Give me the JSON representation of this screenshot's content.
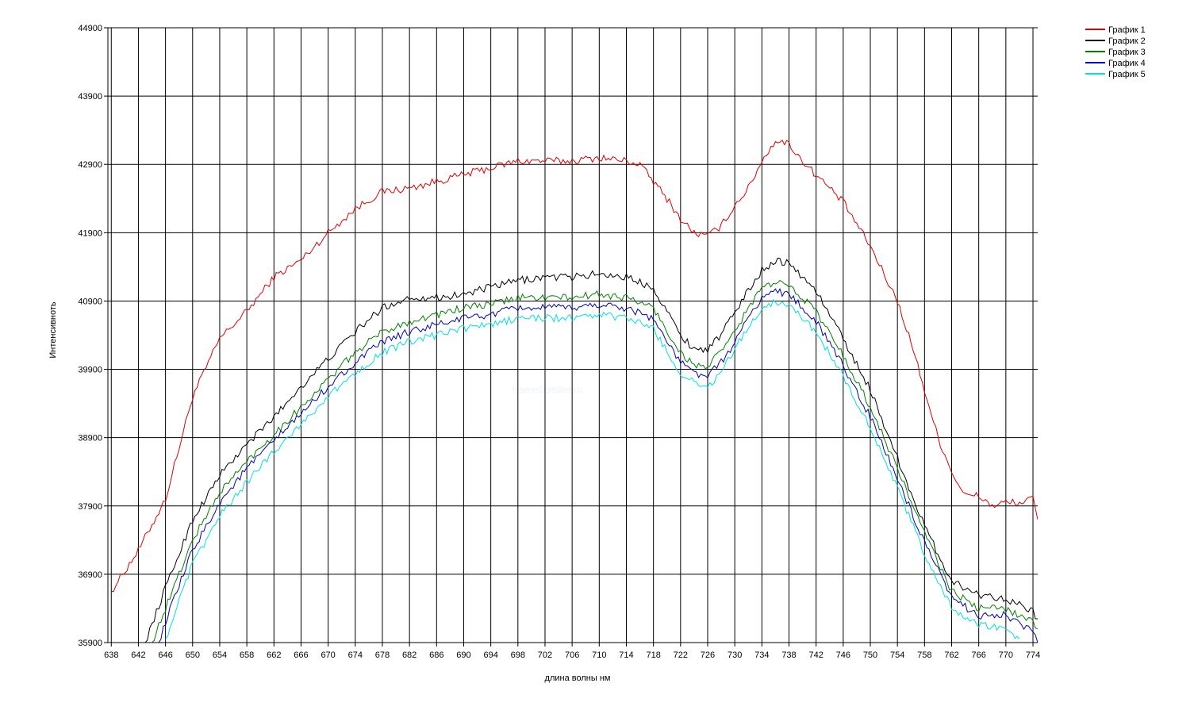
{
  "watermark": "HomeDistiller.ru",
  "chart_data": {
    "type": "line",
    "title": "",
    "xlabel": "длина волны нм",
    "ylabel": "Интенсивноть",
    "xlim": [
      637.5,
      774.7
    ],
    "ylim": [
      35900,
      44900
    ],
    "x_ticks": [
      638,
      642,
      646,
      650,
      654,
      658,
      662,
      666,
      670,
      674,
      678,
      682,
      686,
      690,
      694,
      698,
      702,
      706,
      710,
      714,
      718,
      722,
      726,
      730,
      734,
      738,
      742,
      746,
      750,
      754,
      758,
      762,
      766,
      770,
      774
    ],
    "y_ticks": [
      35900,
      36900,
      37900,
      38900,
      39900,
      40900,
      41900,
      42900,
      43900,
      44900
    ],
    "grid": true,
    "legend_position": "top-right",
    "series": [
      {
        "name": "График 1",
        "color": "#e00000",
        "x": [
          638,
          642,
          646,
          650,
          654,
          658,
          662,
          666,
          670,
          674,
          678,
          682,
          686,
          690,
          694,
          698,
          702,
          706,
          710,
          714,
          716,
          718,
          720,
          722,
          724,
          726,
          728,
          730,
          732,
          734,
          736,
          738,
          740,
          742,
          746,
          750,
          754,
          756,
          758,
          760,
          762,
          764,
          766,
          768,
          770,
          772,
          774,
          774.7
        ],
        "y": [
          36650,
          37250,
          38000,
          39500,
          40350,
          40750,
          41250,
          41500,
          41900,
          42250,
          42500,
          42550,
          42650,
          42750,
          42850,
          42950,
          42950,
          42950,
          43000,
          42950,
          42900,
          42650,
          42400,
          42100,
          41900,
          41850,
          42000,
          42300,
          42550,
          42950,
          43250,
          43200,
          42950,
          42750,
          42350,
          41700,
          40900,
          40300,
          39600,
          38900,
          38400,
          38050,
          38050,
          37900,
          37950,
          37950,
          38000,
          37700
        ]
      },
      {
        "name": "График 2",
        "color": "#000000",
        "x": [
          643,
          646,
          650,
          654,
          658,
          662,
          666,
          670,
          674,
          678,
          682,
          686,
          690,
          694,
          698,
          702,
          706,
          710,
          714,
          718,
          720,
          722,
          724,
          726,
          728,
          730,
          732,
          734,
          736,
          738,
          740,
          742,
          746,
          750,
          754,
          758,
          762,
          766,
          770,
          774,
          774.7
        ],
        "y": [
          35900,
          36700,
          37700,
          38350,
          38800,
          39200,
          39650,
          40050,
          40450,
          40800,
          40950,
          40950,
          41000,
          41100,
          41200,
          41250,
          41250,
          41300,
          41250,
          41100,
          40750,
          40400,
          40200,
          40200,
          40400,
          40750,
          41050,
          41350,
          41500,
          41450,
          41250,
          41050,
          40350,
          39600,
          38600,
          37600,
          36800,
          36600,
          36550,
          36350,
          36250
        ]
      },
      {
        "name": "График 3",
        "color": "#008000",
        "x": [
          644,
          646,
          650,
          654,
          658,
          662,
          666,
          670,
          674,
          678,
          682,
          686,
          690,
          694,
          698,
          702,
          706,
          710,
          714,
          718,
          720,
          722,
          724,
          726,
          728,
          730,
          732,
          734,
          736,
          738,
          740,
          742,
          746,
          750,
          754,
          758,
          762,
          766,
          770,
          774,
          774.7
        ],
        "y": [
          35900,
          36400,
          37400,
          38100,
          38550,
          38950,
          39350,
          39750,
          40150,
          40450,
          40600,
          40700,
          40800,
          40850,
          40950,
          40950,
          40950,
          41000,
          40950,
          40800,
          40450,
          40150,
          39950,
          39950,
          40150,
          40450,
          40800,
          41100,
          41150,
          41150,
          40950,
          40750,
          40100,
          39350,
          38450,
          37500,
          36650,
          36400,
          36400,
          36200,
          36100
        ]
      },
      {
        "name": "График 4",
        "color": "#0000c0",
        "x": [
          645,
          646,
          650,
          654,
          658,
          662,
          666,
          670,
          674,
          678,
          682,
          686,
          690,
          694,
          698,
          702,
          706,
          710,
          714,
          718,
          720,
          722,
          724,
          726,
          728,
          730,
          732,
          734,
          736,
          738,
          740,
          742,
          746,
          750,
          754,
          758,
          762,
          766,
          770,
          774,
          774.7
        ],
        "y": [
          35900,
          36200,
          37250,
          37950,
          38450,
          38850,
          39250,
          39650,
          40000,
          40300,
          40450,
          40550,
          40650,
          40700,
          40800,
          40800,
          40800,
          40850,
          40800,
          40650,
          40300,
          40000,
          39850,
          39800,
          40000,
          40300,
          40650,
          40950,
          41050,
          41000,
          40800,
          40600,
          39950,
          39200,
          38300,
          37350,
          36550,
          36300,
          36300,
          36050,
          35900
        ]
      },
      {
        "name": "График 5",
        "color": "#00e0e0",
        "x": [
          646,
          650,
          654,
          658,
          662,
          666,
          670,
          674,
          678,
          682,
          686,
          690,
          694,
          698,
          702,
          706,
          710,
          714,
          718,
          720,
          722,
          724,
          726,
          728,
          730,
          732,
          734,
          736,
          738,
          740,
          742,
          746,
          750,
          754,
          758,
          762,
          766,
          770,
          772
        ],
        "y": [
          35950,
          37050,
          37750,
          38250,
          38700,
          39100,
          39500,
          39850,
          40150,
          40300,
          40400,
          40500,
          40550,
          40650,
          40650,
          40650,
          40700,
          40650,
          40500,
          40150,
          39850,
          39700,
          39650,
          39850,
          40200,
          40500,
          40800,
          40900,
          40850,
          40650,
          40450,
          39800,
          39050,
          38150,
          37200,
          36400,
          36150,
          36100,
          35950
        ]
      }
    ]
  }
}
